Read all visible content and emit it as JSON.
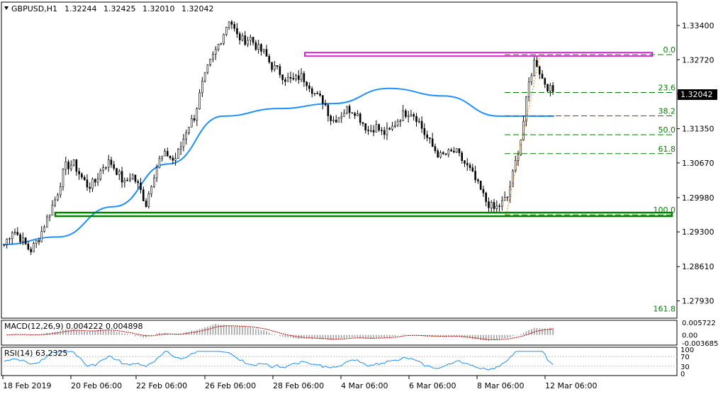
{
  "header": {
    "symbol_label": "GBPUSD,H1",
    "ohlc": [
      "1.32244",
      "1.32425",
      "1.32010",
      "1.32042"
    ]
  },
  "current_price": "1.32042",
  "chart_data": [
    {
      "type": "candlestick",
      "title": "GBPUSD,H1",
      "ylim": [
        1.276,
        1.3385
      ],
      "y_ticks": [
        "1.33400",
        "1.32720",
        "1.32040",
        "1.31350",
        "1.30670",
        "1.29980",
        "1.29300",
        "1.28610",
        "1.27930"
      ],
      "x_ticks": [
        "18 Feb 2019",
        "20 Feb 06:00",
        "22 Feb 06:00",
        "26 Feb 06:00",
        "28 Feb 06:00",
        "4 Mar 06:00",
        "6 Mar 06:00",
        "8 Mar 06:00",
        "12 Mar 06:00"
      ],
      "price_path": [
        [
          1.2905,
          1.2935,
          1.2915,
          1.2892,
          1.2918,
          1.296,
          1.3,
          1.306,
          1.3065
        ],
        [
          1.3065,
          1.304,
          1.302,
          1.303,
          1.306,
          1.307,
          1.305,
          1.3025,
          1.3045,
          1.302,
          1.2985
        ],
        [
          1.2985,
          1.304,
          1.3075,
          1.3085,
          1.307,
          1.31,
          1.314,
          1.316,
          1.322,
          1.326,
          1.329
        ],
        [
          1.329,
          1.332,
          1.3355,
          1.332,
          1.331,
          1.3315,
          1.3295,
          1.3285,
          1.326,
          1.325,
          1.3235
        ],
        [
          1.3235,
          1.323,
          1.324,
          1.3225,
          1.32,
          1.319,
          1.315,
          1.316,
          1.3175,
          1.317
        ],
        [
          1.317,
          1.315,
          1.313,
          1.314,
          1.3125,
          1.313,
          1.315,
          1.3165,
          1.317,
          1.3155,
          1.3125
        ],
        [
          1.3125,
          1.31,
          1.308,
          1.3085,
          1.309,
          1.307,
          1.305,
          1.302,
          1.299,
          1.2975
        ],
        [
          1.2975,
          1.2985,
          1.3,
          1.306,
          1.312,
          1.322,
          1.3275,
          1.3235,
          1.3215,
          1.3204
        ]
      ],
      "series": [
        {
          "name": "",
          "color": "#1e90ff",
          "values": [
            1.2905,
            1.292,
            1.298,
            1.3065,
            1.316,
            1.3175,
            1.3185,
            1.3215,
            1.32,
            1.316,
            1.316
          ]
        }
      ],
      "horizontal_lines": [
        {
          "value": 1.3282,
          "color": "#e020e0"
        },
        {
          "value": 1.2964,
          "color": "#008000"
        }
      ],
      "fibonacci": {
        "color": "#008000",
        "low": 1.2964,
        "high": 1.3282,
        "levels": [
          {
            "label": "0.0",
            "value": 1.3282
          },
          {
            "label": "23.6",
            "value": 1.32069
          },
          {
            "label": "38.2",
            "value": 1.31605
          },
          {
            "label": "50.0",
            "value": 1.3123
          },
          {
            "label": "61.8",
            "value": 1.30855
          },
          {
            "label": "100.0",
            "value": 1.2964
          },
          {
            "label": "161.8",
            "value": 1.27675
          }
        ]
      }
    },
    {
      "type": "bar",
      "title": "MACD(12,26,9) 0.004222 0.004898",
      "y_ticks": [
        "0.005722",
        "0.00",
        "-0.003685"
      ],
      "ylim": [
        -0.003685,
        0.005722
      ]
    },
    {
      "type": "line",
      "title": "RSI(14) 63.2325",
      "y_ticks": [
        "100",
        "70",
        "30",
        "0"
      ],
      "ylim": [
        0,
        100
      ],
      "value": 63.2325
    }
  ]
}
